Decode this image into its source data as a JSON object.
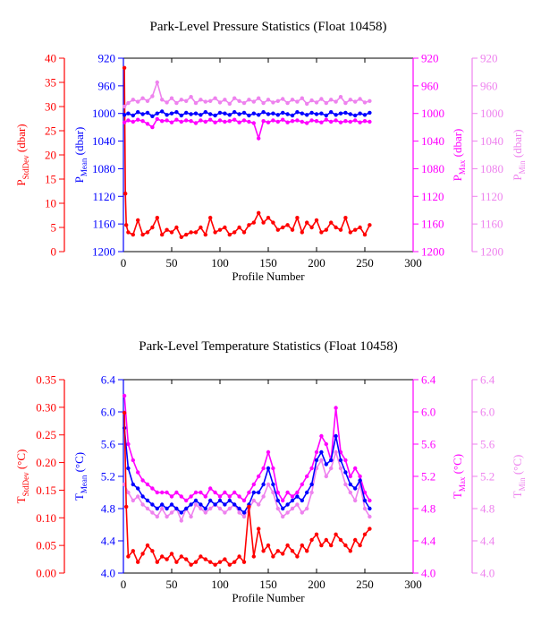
{
  "chart_data": [
    {
      "type": "line",
      "title": "Park-Level Pressure Statistics (Float 10458)",
      "xlabel": "Profile Number",
      "x_ticks": [
        "0",
        "50",
        "100",
        "150",
        "200",
        "250",
        "300"
      ],
      "xlim": [
        0,
        300
      ],
      "grid": false,
      "axes": [
        {
          "id": "sd",
          "label_main": "P",
          "label_sub": "StdDev",
          "label_unit": " (dbar)",
          "color": "#ff0000",
          "range": [
            0,
            40
          ],
          "reversed": false,
          "ticks": [
            "0",
            "5",
            "10",
            "15",
            "20",
            "25",
            "30",
            "35",
            "40"
          ]
        },
        {
          "id": "mean",
          "label_main": "P",
          "label_sub": "Mean",
          "label_unit": " (dbar)",
          "color": "#0000ff",
          "range": [
            920,
            1200
          ],
          "reversed": true,
          "ticks": [
            "920",
            "960",
            "1000",
            "1040",
            "1080",
            "1120",
            "1160",
            "1200"
          ]
        },
        {
          "id": "max",
          "label_main": "P",
          "label_sub": "Max",
          "label_unit": " (dbar)",
          "color": "#ff00ff",
          "range": [
            920,
            1200
          ],
          "reversed": true,
          "ticks": [
            "920",
            "960",
            "1000",
            "1040",
            "1080",
            "1120",
            "1160",
            "1200"
          ]
        },
        {
          "id": "min",
          "label_main": "P",
          "label_sub": "Min",
          "label_unit": " (dbar)",
          "color": "#ee82ee",
          "range": [
            920,
            1200
          ],
          "reversed": true,
          "ticks": [
            "920",
            "960",
            "1000",
            "1040",
            "1080",
            "1120",
            "1160",
            "1200"
          ]
        }
      ],
      "series": [
        {
          "axis": "sd",
          "color": "#ff0000",
          "x": [
            1,
            2,
            3,
            5,
            10,
            15,
            20,
            25,
            30,
            35,
            40,
            45,
            50,
            55,
            60,
            65,
            70,
            75,
            80,
            85,
            90,
            95,
            100,
            105,
            110,
            115,
            120,
            125,
            130,
            135,
            140,
            145,
            150,
            155,
            160,
            165,
            170,
            175,
            180,
            185,
            190,
            195,
            200,
            205,
            210,
            215,
            220,
            225,
            230,
            235,
            240,
            245,
            250,
            255
          ],
          "y": [
            38,
            12,
            5.5,
            4,
            3.5,
            6.5,
            3.5,
            4,
            5,
            7,
            3.5,
            4.5,
            4,
            5,
            3,
            3.5,
            4,
            4,
            5,
            3.5,
            7,
            4,
            4.5,
            5,
            3.5,
            4,
            5,
            4,
            5.5,
            6,
            8,
            6,
            7,
            6,
            4.5,
            5,
            5.5,
            4.5,
            7,
            4,
            6,
            5,
            6.5,
            4,
            4.5,
            6,
            5,
            4.5,
            7,
            4,
            4.5,
            5,
            3.5,
            5.5
          ]
        },
        {
          "axis": "min",
          "color": "#ee82ee",
          "x": [
            1,
            5,
            10,
            15,
            20,
            25,
            30,
            35,
            40,
            45,
            50,
            55,
            60,
            65,
            70,
            75,
            80,
            85,
            90,
            95,
            100,
            105,
            110,
            115,
            120,
            125,
            130,
            135,
            140,
            145,
            150,
            155,
            160,
            165,
            170,
            175,
            180,
            185,
            190,
            195,
            200,
            205,
            210,
            215,
            220,
            225,
            230,
            235,
            240,
            245,
            250,
            255
          ],
          "y": [
            990,
            985,
            980,
            983,
            978,
            982,
            975,
            955,
            980,
            984,
            978,
            985,
            980,
            982,
            976,
            985,
            980,
            983,
            982,
            978,
            984,
            980,
            986,
            978,
            982,
            985,
            980,
            983,
            978,
            985,
            980,
            984,
            982,
            979,
            985,
            980,
            983,
            978,
            986,
            981,
            984,
            979,
            985,
            980,
            983,
            976,
            985,
            980,
            983,
            979,
            984,
            982
          ]
        },
        {
          "axis": "max",
          "color": "#ff00ff",
          "x": [
            1,
            5,
            10,
            15,
            20,
            25,
            30,
            35,
            40,
            45,
            50,
            55,
            60,
            65,
            70,
            75,
            80,
            85,
            90,
            95,
            100,
            105,
            110,
            115,
            120,
            125,
            130,
            135,
            140,
            145,
            150,
            155,
            160,
            165,
            170,
            175,
            180,
            185,
            190,
            195,
            200,
            205,
            210,
            215,
            220,
            225,
            230,
            235,
            240,
            245,
            250,
            255
          ],
          "y": [
            1013,
            1010,
            1012,
            1009,
            1011,
            1015,
            1020,
            1008,
            1011,
            1010,
            1013,
            1009,
            1012,
            1010,
            1011,
            1014,
            1010,
            1012,
            1009,
            1013,
            1010,
            1012,
            1011,
            1009,
            1013,
            1010,
            1012,
            1014,
            1036,
            1011,
            1013,
            1010,
            1012,
            1009,
            1013,
            1011,
            1010,
            1012,
            1014,
            1010,
            1011,
            1013,
            1009,
            1012,
            1010,
            1013,
            1011,
            1012,
            1010,
            1013,
            1011,
            1012
          ]
        },
        {
          "axis": "mean",
          "color": "#0000ff",
          "x": [
            1,
            5,
            10,
            15,
            20,
            25,
            30,
            35,
            40,
            45,
            50,
            55,
            60,
            65,
            70,
            75,
            80,
            85,
            90,
            95,
            100,
            105,
            110,
            115,
            120,
            125,
            130,
            135,
            140,
            145,
            150,
            155,
            160,
            165,
            170,
            175,
            180,
            185,
            190,
            195,
            200,
            205,
            210,
            215,
            220,
            225,
            230,
            235,
            240,
            245,
            250,
            255
          ],
          "y": [
            1002,
            1000,
            1003,
            998,
            1001,
            999,
            1004,
            1000,
            997,
            1002,
            1000,
            998,
            1003,
            999,
            1001,
            1000,
            1002,
            998,
            1001,
            1003,
            999,
            1000,
            1002,
            998,
            1001,
            999,
            1003,
            1000,
            1002,
            998,
            1001,
            1000,
            1002,
            999,
            1001,
            1003,
            998,
            1000,
            1002,
            999,
            1001,
            1000,
            1003,
            998,
            1002,
            1000,
            999,
            1001,
            1003,
            1000,
            1002,
            999
          ]
        }
      ]
    },
    {
      "type": "line",
      "title": "Park-Level Temperature Statistics (Float 10458)",
      "xlabel": "Profile Number",
      "x_ticks": [
        "0",
        "50",
        "100",
        "150",
        "200",
        "250",
        "300"
      ],
      "xlim": [
        0,
        300
      ],
      "grid": false,
      "axes": [
        {
          "id": "sd",
          "label_main": "T",
          "label_sub": "StdDev",
          "label_unit": " (°C)",
          "color": "#ff0000",
          "range": [
            0,
            0.35
          ],
          "reversed": false,
          "ticks": [
            "0.00",
            "0.05",
            "0.10",
            "0.15",
            "0.20",
            "0.25",
            "0.30",
            "0.35"
          ]
        },
        {
          "id": "mean",
          "label_main": "T",
          "label_sub": "Mean",
          "label_unit": " (°C)",
          "color": "#0000ff",
          "range": [
            4.0,
            6.4
          ],
          "reversed": false,
          "ticks": [
            "4.0",
            "4.4",
            "4.8",
            "5.2",
            "5.6",
            "6.0",
            "6.4"
          ]
        },
        {
          "id": "max",
          "label_main": "T",
          "label_sub": "Max",
          "label_unit": " (°C)",
          "color": "#ff00ff",
          "range": [
            4.0,
            6.4
          ],
          "reversed": false,
          "ticks": [
            "4.0",
            "4.4",
            "4.8",
            "5.2",
            "5.6",
            "6.0",
            "6.4"
          ]
        },
        {
          "id": "min",
          "label_main": "T",
          "label_sub": "Min",
          "label_unit": " (°C)",
          "color": "#ee82ee",
          "range": [
            4.0,
            6.4
          ],
          "reversed": false,
          "ticks": [
            "4.0",
            "4.4",
            "4.8",
            "5.2",
            "5.6",
            "6.0",
            "6.4"
          ]
        }
      ],
      "series": [
        {
          "axis": "min",
          "color": "#ee82ee",
          "x": [
            1,
            5,
            10,
            15,
            20,
            25,
            30,
            35,
            40,
            45,
            50,
            55,
            60,
            65,
            70,
            75,
            80,
            85,
            90,
            95,
            100,
            105,
            110,
            115,
            120,
            125,
            130,
            135,
            140,
            145,
            150,
            155,
            160,
            165,
            170,
            175,
            180,
            185,
            190,
            195,
            200,
            205,
            210,
            215,
            220,
            225,
            230,
            235,
            240,
            245,
            250,
            255
          ],
          "y": [
            5.1,
            5.0,
            4.9,
            4.95,
            4.85,
            4.8,
            4.75,
            4.7,
            4.8,
            4.7,
            4.75,
            4.8,
            4.65,
            4.8,
            4.7,
            4.85,
            4.8,
            4.75,
            4.8,
            4.85,
            4.8,
            4.75,
            4.8,
            4.85,
            4.75,
            4.7,
            4.8,
            4.9,
            4.85,
            4.95,
            5.1,
            5.0,
            4.8,
            4.7,
            4.75,
            4.8,
            4.85,
            4.75,
            4.8,
            5.0,
            5.3,
            5.4,
            5.2,
            5.3,
            5.5,
            5.3,
            5.1,
            5.0,
            4.9,
            5.1,
            4.8,
            4.7
          ]
        },
        {
          "axis": "max",
          "color": "#ff00ff",
          "x": [
            1,
            5,
            10,
            15,
            20,
            25,
            30,
            35,
            40,
            45,
            50,
            55,
            60,
            65,
            70,
            75,
            80,
            85,
            90,
            95,
            100,
            105,
            110,
            115,
            120,
            125,
            130,
            135,
            140,
            145,
            150,
            155,
            160,
            165,
            170,
            175,
            180,
            185,
            190,
            195,
            200,
            205,
            210,
            215,
            220,
            225,
            230,
            235,
            240,
            245,
            250,
            255
          ],
          "y": [
            6.2,
            5.6,
            5.4,
            5.25,
            5.15,
            5.1,
            5.05,
            5.0,
            5.0,
            5.0,
            4.95,
            5.0,
            4.95,
            4.9,
            4.95,
            5.0,
            5.0,
            4.95,
            5.05,
            5.0,
            4.95,
            5.0,
            4.95,
            5.0,
            4.95,
            4.9,
            5.0,
            5.1,
            5.2,
            5.3,
            5.5,
            5.3,
            5.0,
            4.9,
            5.0,
            4.95,
            5.0,
            5.1,
            5.2,
            5.3,
            5.5,
            5.7,
            5.6,
            5.4,
            6.05,
            5.5,
            5.4,
            5.2,
            5.3,
            5.2,
            5.0,
            4.9
          ]
        },
        {
          "axis": "mean",
          "color": "#0000ff",
          "x": [
            1,
            5,
            10,
            15,
            20,
            25,
            30,
            35,
            40,
            45,
            50,
            55,
            60,
            65,
            70,
            75,
            80,
            85,
            90,
            95,
            100,
            105,
            110,
            115,
            120,
            125,
            130,
            135,
            140,
            145,
            150,
            155,
            160,
            165,
            170,
            175,
            180,
            185,
            190,
            195,
            200,
            205,
            210,
            215,
            220,
            225,
            230,
            235,
            240,
            245,
            250,
            255
          ],
          "y": [
            5.8,
            5.3,
            5.1,
            5.05,
            4.95,
            4.9,
            4.85,
            4.8,
            4.85,
            4.8,
            4.85,
            4.8,
            4.75,
            4.8,
            4.85,
            4.9,
            4.85,
            4.8,
            4.9,
            4.85,
            4.9,
            4.85,
            4.9,
            4.85,
            4.8,
            4.75,
            4.85,
            5.0,
            5.0,
            5.1,
            5.3,
            5.1,
            4.9,
            4.8,
            4.85,
            4.9,
            4.95,
            4.9,
            5.0,
            5.1,
            5.4,
            5.5,
            5.35,
            5.4,
            5.7,
            5.4,
            5.25,
            5.1,
            5.05,
            5.15,
            4.9,
            4.8
          ]
        },
        {
          "axis": "sd",
          "color": "#ff0000",
          "x": [
            1,
            3,
            5,
            10,
            15,
            20,
            25,
            30,
            35,
            40,
            45,
            50,
            55,
            60,
            65,
            70,
            75,
            80,
            85,
            90,
            95,
            100,
            105,
            110,
            115,
            120,
            125,
            130,
            135,
            140,
            145,
            150,
            155,
            160,
            165,
            170,
            175,
            180,
            185,
            190,
            195,
            200,
            205,
            210,
            215,
            220,
            225,
            230,
            235,
            240,
            245,
            250,
            255
          ],
          "y": [
            0.29,
            0.12,
            0.03,
            0.04,
            0.02,
            0.035,
            0.05,
            0.04,
            0.02,
            0.03,
            0.025,
            0.035,
            0.02,
            0.03,
            0.025,
            0.015,
            0.02,
            0.03,
            0.025,
            0.02,
            0.015,
            0.02,
            0.025,
            0.015,
            0.02,
            0.03,
            0.02,
            0.12,
            0.03,
            0.08,
            0.04,
            0.05,
            0.03,
            0.04,
            0.035,
            0.05,
            0.04,
            0.03,
            0.05,
            0.04,
            0.06,
            0.07,
            0.05,
            0.06,
            0.05,
            0.07,
            0.06,
            0.05,
            0.04,
            0.06,
            0.05,
            0.07,
            0.08
          ]
        }
      ]
    }
  ]
}
